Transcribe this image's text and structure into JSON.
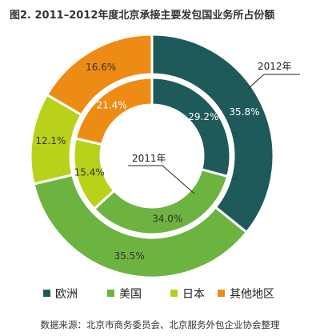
{
  "chart_data": {
    "type": "pie",
    "title": "图2. 2011–2012年度北京承接主要发包国业务所占份额",
    "categories": [
      "欧洲",
      "美国",
      "日本",
      "其他地区"
    ],
    "colors": [
      "#1f5a5a",
      "#6db33f",
      "#b9d219",
      "#ee8b14"
    ],
    "series": [
      {
        "name": "2012年",
        "values": [
          35.8,
          35.5,
          12.1,
          16.6
        ],
        "labels": [
          "35.8%",
          "35.5%",
          "12.1%",
          "16.6%"
        ]
      },
      {
        "name": "2011年",
        "values": [
          29.2,
          34.0,
          15.4,
          21.4
        ],
        "labels": [
          "29.2%",
          "34.0%",
          "15.4%",
          "21.4%"
        ]
      }
    ],
    "legend_position": "bottom",
    "source": "数据来源：北京市商务委员会、北京服务外包企业协会整理"
  }
}
